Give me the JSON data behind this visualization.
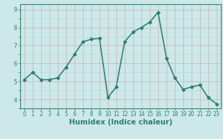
{
  "x": [
    0,
    1,
    2,
    3,
    4,
    5,
    6,
    7,
    8,
    9,
    10,
    11,
    12,
    13,
    14,
    15,
    16,
    17,
    18,
    19,
    20,
    21,
    22,
    23
  ],
  "y": [
    5.1,
    5.5,
    5.1,
    5.1,
    5.2,
    5.8,
    6.5,
    7.2,
    7.35,
    7.4,
    4.1,
    4.7,
    7.2,
    7.75,
    8.0,
    8.3,
    8.85,
    6.3,
    5.2,
    4.55,
    4.7,
    4.8,
    4.1,
    3.75
  ],
  "line_color": "#2e7d6e",
  "marker": "D",
  "marker_size": 2.2,
  "bg_color": "#cce8e8",
  "grid_minor_color": "#b8d4d4",
  "grid_major_color": "#c4b0b0",
  "xlabel": "Humidex (Indice chaleur)",
  "ylim": [
    3.5,
    9.3
  ],
  "xlim": [
    -0.5,
    23.5
  ],
  "yticks": [
    4,
    5,
    6,
    7,
    8,
    9
  ],
  "xticks": [
    0,
    1,
    2,
    3,
    4,
    5,
    6,
    7,
    8,
    9,
    10,
    11,
    12,
    13,
    14,
    15,
    16,
    17,
    18,
    19,
    20,
    21,
    22,
    23
  ],
  "tick_color": "#2e7d6e",
  "tick_fontsize": 5.5,
  "xlabel_fontsize": 7.5,
  "line_width": 1.2
}
